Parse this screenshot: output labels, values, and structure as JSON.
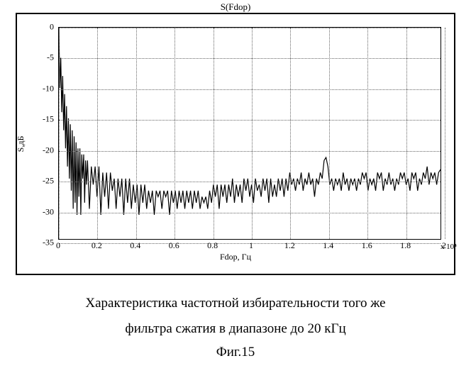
{
  "chart": {
    "type": "line",
    "title": "S(Fdop)",
    "title_fontsize": 13,
    "xlabel": "Fdop, Гц",
    "ylabel": "S,дБ",
    "label_fontsize": 12,
    "xlim": [
      0,
      2
    ],
    "ylim": [
      -35,
      0
    ],
    "xtick_step": 0.2,
    "ytick_step": 5,
    "x_multiplier_text": "x 10⁴",
    "xticks": [
      "0",
      "0.2",
      "0.4",
      "0.6",
      "0.8",
      "1",
      "1.2",
      "1.4",
      "1.6",
      "1.8",
      "2"
    ],
    "yticks": [
      "0",
      "-5",
      "-10",
      "-15",
      "-20",
      "-25",
      "-30",
      "-35"
    ],
    "grid": true,
    "grid_style": "dotted",
    "grid_color": "#666666",
    "background_color": "#ffffff",
    "border_color": "#000000",
    "line_color": "#000000",
    "line_width": 1.2,
    "series": {
      "x": [
        0,
        0.005,
        0.01,
        0.015,
        0.02,
        0.025,
        0.03,
        0.035,
        0.04,
        0.045,
        0.05,
        0.055,
        0.06,
        0.065,
        0.07,
        0.075,
        0.08,
        0.085,
        0.09,
        0.095,
        0.1,
        0.105,
        0.11,
        0.115,
        0.12,
        0.125,
        0.13,
        0.135,
        0.14,
        0.145,
        0.15,
        0.16,
        0.17,
        0.18,
        0.19,
        0.2,
        0.21,
        0.22,
        0.23,
        0.24,
        0.25,
        0.26,
        0.27,
        0.28,
        0.29,
        0.3,
        0.31,
        0.32,
        0.33,
        0.34,
        0.35,
        0.36,
        0.37,
        0.38,
        0.39,
        0.4,
        0.41,
        0.42,
        0.43,
        0.44,
        0.45,
        0.46,
        0.47,
        0.48,
        0.49,
        0.5,
        0.51,
        0.52,
        0.53,
        0.54,
        0.55,
        0.56,
        0.57,
        0.58,
        0.59,
        0.6,
        0.61,
        0.62,
        0.63,
        0.64,
        0.65,
        0.66,
        0.67,
        0.68,
        0.69,
        0.7,
        0.71,
        0.72,
        0.73,
        0.74,
        0.75,
        0.76,
        0.77,
        0.78,
        0.79,
        0.8,
        0.81,
        0.82,
        0.83,
        0.84,
        0.85,
        0.86,
        0.87,
        0.88,
        0.89,
        0.9,
        0.91,
        0.92,
        0.93,
        0.94,
        0.95,
        0.96,
        0.97,
        0.98,
        0.99,
        1.0,
        1.01,
        1.02,
        1.03,
        1.04,
        1.05,
        1.06,
        1.07,
        1.08,
        1.09,
        1.1,
        1.11,
        1.12,
        1.13,
        1.14,
        1.15,
        1.16,
        1.17,
        1.18,
        1.19,
        1.2,
        1.21,
        1.22,
        1.23,
        1.24,
        1.25,
        1.26,
        1.27,
        1.28,
        1.29,
        1.3,
        1.31,
        1.32,
        1.33,
        1.34,
        1.35,
        1.36,
        1.37,
        1.38,
        1.39,
        1.4,
        1.41,
        1.42,
        1.43,
        1.44,
        1.45,
        1.46,
        1.47,
        1.48,
        1.49,
        1.5,
        1.51,
        1.52,
        1.53,
        1.54,
        1.55,
        1.56,
        1.57,
        1.58,
        1.59,
        1.6,
        1.61,
        1.62,
        1.63,
        1.64,
        1.65,
        1.66,
        1.67,
        1.68,
        1.69,
        1.7,
        1.71,
        1.72,
        1.73,
        1.74,
        1.75,
        1.76,
        1.77,
        1.78,
        1.79,
        1.8,
        1.81,
        1.82,
        1.83,
        1.84,
        1.85,
        1.86,
        1.87,
        1.88,
        1.89,
        1.9,
        1.91,
        1.92,
        1.93,
        1.94,
        1.95,
        1.96,
        1.97,
        1.98,
        1.99,
        2.0
      ],
      "y": [
        0,
        -10,
        -5,
        -14,
        -8,
        -17,
        -11,
        -20,
        -13,
        -23,
        -15,
        -25,
        -16,
        -27,
        -17,
        -30,
        -18,
        -29,
        -19,
        -31,
        -20,
        -28,
        -20,
        -31,
        -21,
        -25,
        -21,
        -29,
        -22,
        -26,
        -22,
        -30,
        -23,
        -26,
        -23,
        -28,
        -23,
        -31,
        -24,
        -28,
        -24,
        -30,
        -24,
        -27,
        -25,
        -30,
        -25,
        -28,
        -25,
        -31,
        -25,
        -29,
        -25,
        -30,
        -26,
        -29,
        -26,
        -31,
        -26,
        -29,
        -26,
        -30,
        -27,
        -29,
        -27,
        -31,
        -27,
        -28,
        -27,
        -30,
        -27,
        -28,
        -27,
        -31,
        -27,
        -29,
        -27,
        -30,
        -27,
        -29,
        -27,
        -30,
        -27,
        -29,
        -27,
        -30,
        -27,
        -29,
        -27,
        -30,
        -28,
        -29,
        -28,
        -30,
        -27,
        -29,
        -26,
        -28,
        -26,
        -30,
        -26,
        -28,
        -26,
        -29,
        -26,
        -28,
        -25,
        -29,
        -26,
        -28,
        -26,
        -29,
        -25,
        -27,
        -25,
        -28,
        -26,
        -29,
        -25,
        -27,
        -26,
        -28,
        -25,
        -27,
        -25,
        -29,
        -25,
        -28,
        -26,
        -28,
        -25,
        -27,
        -25,
        -28,
        -25,
        -27,
        -24,
        -26,
        -25,
        -27,
        -25,
        -26,
        -24,
        -27,
        -25,
        -26,
        -24,
        -26,
        -25,
        -28,
        -25,
        -26,
        -24,
        -25,
        -22,
        -21.5,
        -23,
        -26,
        -25,
        -27,
        -25,
        -26,
        -25,
        -27,
        -24,
        -26,
        -25,
        -27,
        -25,
        -26,
        -25,
        -27,
        -25,
        -26,
        -24,
        -25,
        -24,
        -27,
        -25,
        -26,
        -25,
        -27,
        -24,
        -25,
        -24,
        -27,
        -25,
        -26,
        -24,
        -26,
        -25,
        -27,
        -25,
        -26,
        -24,
        -25,
        -24,
        -26,
        -25,
        -27,
        -24,
        -25,
        -24,
        -27,
        -25,
        -26,
        -24,
        -25,
        -23,
        -26,
        -24,
        -25,
        -24,
        -26,
        -24,
        -23.5
      ]
    }
  },
  "caption_lines": [
    "Характеристика частотной избирательности того же",
    "фильтра сжатия в диапазоне до 20 кГц"
  ],
  "figure_label": "Фиг.15",
  "caption_fontsize": 19
}
